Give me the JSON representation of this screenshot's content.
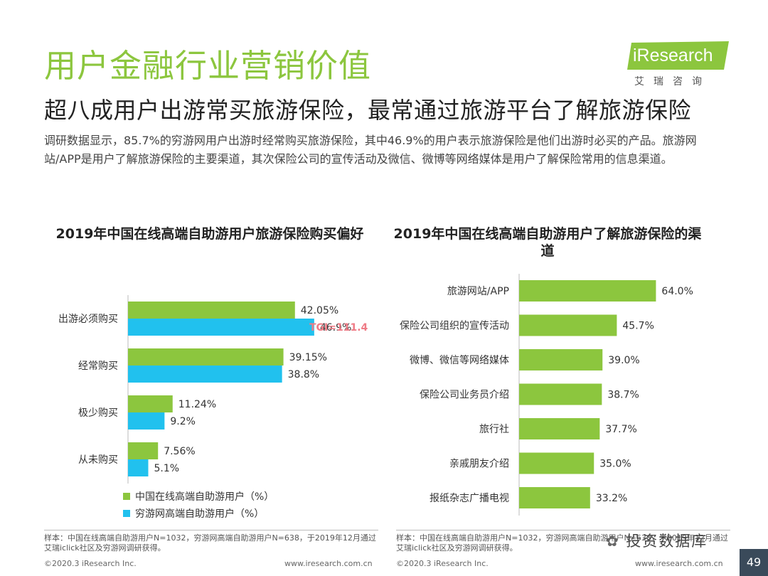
{
  "header": {
    "title": "用户金融行业营销价值",
    "logo_text": "iResearch",
    "logo_subtext": "艾瑞咨询",
    "subtitle": "超八成用户出游常买旅游保险，最常通过旅游平台了解旅游保险",
    "description": "调研数据显示，85.7%的穷游网用户出游时经常购买旅游保险，其中46.9%的用户表示旅游保险是他们出游时必买的产品。旅游网站/APP是用户了解旅游保险的主要渠道，其次保险公司的宣传活动及微信、微博等网络媒体是用户了解保险常用的信息渠道。"
  },
  "colors": {
    "green": "#8cc63e",
    "blue": "#21c1ee",
    "tgi": "#ef7b86",
    "title_green": "#8cc63e"
  },
  "chart_data": [
    {
      "type": "bar",
      "orientation": "horizontal",
      "title": "2019年中国在线高端自助游用户旅游保险购买偏好",
      "categories": [
        "出游必须购买",
        "经常购买",
        "极少购买",
        "从未购买"
      ],
      "series": [
        {
          "name": "中国在线高端自助游用户（%）",
          "values": [
            42.05,
            39.15,
            11.24,
            7.56
          ],
          "labels": [
            "42.05%",
            "39.15%",
            "11.24%",
            "7.56%"
          ]
        },
        {
          "name": "穷游网高端自助游用户（%）",
          "values": [
            46.9,
            38.8,
            9.2,
            5.1
          ],
          "labels": [
            "46.9%",
            "38.8%",
            "9.2%",
            "5.1%"
          ]
        }
      ],
      "annotation": "TGI=111.4",
      "xlim": [
        0,
        60
      ]
    },
    {
      "type": "bar",
      "orientation": "horizontal",
      "title": "2019年中国在线高端自助游用户了解旅游保险的渠道",
      "categories": [
        "旅游网站/APP",
        "保险公司组织的宣传活动",
        "微博、微信等网络媒体",
        "保险公司业务员介绍",
        "旅行社",
        "亲戚朋友介绍",
        "报纸杂志广播电视"
      ],
      "values": [
        64.0,
        45.7,
        39.0,
        38.7,
        37.7,
        35.0,
        33.2
      ],
      "labels": [
        "64.0%",
        "45.7%",
        "39.0%",
        "38.7%",
        "37.7%",
        "35.0%",
        "33.2%"
      ],
      "xlim": [
        0,
        90
      ]
    }
  ],
  "footer": {
    "left_source": "样本：中国在线高端自助游用户N=1032，穷游网高端自助游用户N=638，于2019年12月通过艾瑞iclick社区及穷游网调研获得。",
    "right_source": "样本：中国在线高端自助游用户N=1032，穷游网高端自助游用户N=638，于2019年12月通过艾瑞iclick社区及穷游网调研获得。",
    "copyright": "©2020.3 iResearch Inc.",
    "url": "www.iresearch.com.cn",
    "watermark": "投资数据库",
    "page_number": "49"
  }
}
